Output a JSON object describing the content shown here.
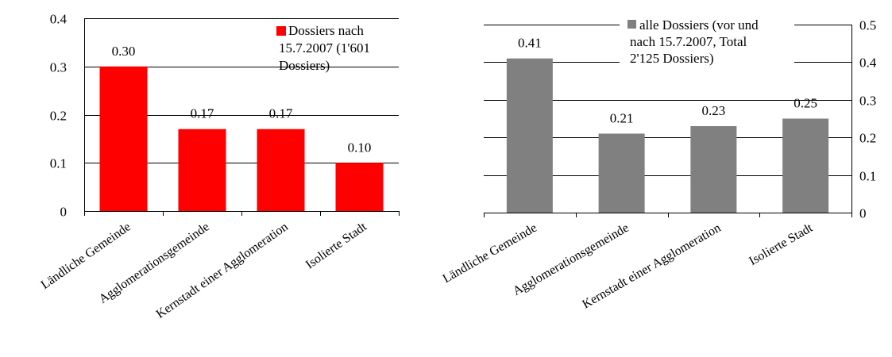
{
  "chart_data": [
    {
      "type": "bar",
      "categories": [
        "Ländliche Gemeinde",
        "Agglomerationsgemeinde",
        "Kernstadt einer Agglomeration",
        "Isolierte Stadt"
      ],
      "series": [
        {
          "name": "Dossiers nach 15.7.2007 (1'601 Dossiers)",
          "values": [
            0.3,
            0.17,
            0.17,
            0.1
          ],
          "color": "#ff0000"
        }
      ],
      "data_labels": [
        "0.30",
        "0.17",
        "0.17",
        "0.10"
      ],
      "legend_lines": [
        "Dossiers nach",
        "15.7.2007 (1'601",
        "Dossiers)"
      ],
      "yticks": [
        "0",
        "0.1",
        "0.2",
        "0.3",
        "0.4"
      ],
      "ylim": [
        0,
        0.4
      ],
      "grid": true,
      "axis_side": "left",
      "legend_position": "top-right"
    },
    {
      "type": "bar",
      "categories": [
        "Ländliche Gemeinde",
        "Agglomerationsgemeinde",
        "Kernstadt einer Agglomeration",
        "Isolierte Stadt"
      ],
      "series": [
        {
          "name": "alle Dossiers (vor und nach 15.7.2007, Total 2'125 Dossiers)",
          "values": [
            0.41,
            0.21,
            0.23,
            0.25
          ],
          "color": "#808080"
        }
      ],
      "data_labels": [
        "0.41",
        "0.21",
        "0.23",
        "0.25"
      ],
      "legend_lines": [
        "alle Dossiers (vor und",
        "nach 15.7.2007, Total",
        "2'125 Dossiers)"
      ],
      "yticks": [
        "0",
        "0.1",
        "0.2",
        "0.3",
        "0.4",
        "0.5"
      ],
      "ylim": [
        0,
        0.5
      ],
      "grid": true,
      "axis_side": "right",
      "legend_position": "top-left"
    }
  ]
}
